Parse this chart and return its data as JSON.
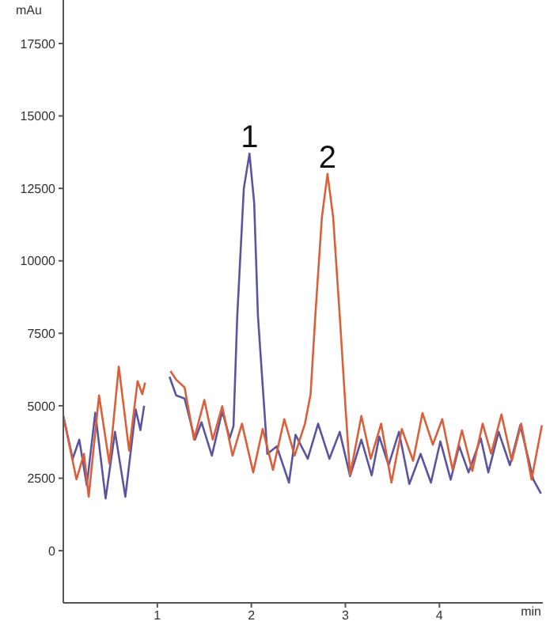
{
  "chart_data": {
    "type": "line",
    "xlabel": "min",
    "ylabel": "mAu",
    "xlim": [
      0,
      5.1
    ],
    "xticks": [
      1,
      2,
      3,
      4
    ],
    "ylim": [
      -1800,
      19000
    ],
    "yticks": [
      0,
      2500,
      5000,
      7500,
      10000,
      12500,
      15000,
      17500
    ],
    "grid": false,
    "marker": "none",
    "line_style": "solid",
    "annotations": [
      {
        "text": "1",
        "x": 1.98,
        "y": 13700
      },
      {
        "text": "2",
        "x": 2.81,
        "y": 13000
      }
    ],
    "series": [
      {
        "color": "#5a55a0",
        "x": [
          0,
          0.1,
          0.17,
          0.25,
          0.34,
          0.45,
          0.55,
          0.66,
          0.77,
          0.82,
          0.86,
          0.9,
          1.1,
          1.13,
          1.2,
          1.29,
          1.4,
          1.47,
          1.58,
          1.69,
          1.77,
          1.81,
          1.85,
          1.92,
          1.98,
          2.03,
          2.07,
          2.17,
          2.27,
          2.4,
          2.47,
          2.6,
          2.71,
          2.83,
          2.94,
          3.05,
          3.17,
          3.28,
          3.36,
          3.46,
          3.57,
          3.68,
          3.8,
          3.91,
          4.01,
          4.12,
          4.21,
          4.31,
          4.44,
          4.52,
          4.63,
          4.75,
          4.86,
          5.0,
          5.08
        ],
        "values": [
          4650,
          3170,
          3830,
          2250,
          4760,
          1800,
          4100,
          1860,
          4870,
          4160,
          5000,
          null,
          null,
          6000,
          5360,
          5250,
          3830,
          4430,
          3280,
          4810,
          3880,
          4300,
          8100,
          12500,
          13700,
          12000,
          8100,
          3340,
          3600,
          2350,
          4000,
          3170,
          4380,
          3170,
          4100,
          2570,
          3830,
          2600,
          3940,
          2950,
          4100,
          2300,
          3340,
          2350,
          3770,
          2450,
          3610,
          2700,
          3880,
          2700,
          4100,
          2950,
          4330,
          2450,
          1970
        ]
      },
      {
        "color": "#d9603a",
        "x": [
          0,
          0.14,
          0.22,
          0.27,
          0.38,
          0.49,
          0.59,
          0.7,
          0.79,
          0.84,
          0.87,
          0.89,
          1.12,
          1.14,
          1.2,
          1.29,
          1.39,
          1.5,
          1.59,
          1.69,
          1.8,
          1.9,
          2.02,
          2.12,
          2.23,
          2.35,
          2.46,
          2.57,
          2.63,
          2.68,
          2.75,
          2.81,
          2.87,
          2.94,
          3.0,
          3.05,
          3.17,
          3.27,
          3.38,
          3.49,
          3.6,
          3.72,
          3.82,
          3.93,
          4.03,
          4.14,
          4.24,
          4.35,
          4.46,
          4.55,
          4.66,
          4.77,
          4.87,
          4.98,
          5.09
        ],
        "values": [
          4650,
          2460,
          3340,
          1860,
          5360,
          3000,
          6350,
          3450,
          5850,
          5400,
          5800,
          null,
          null,
          6200,
          5900,
          5630,
          3830,
          5200,
          3830,
          4980,
          3280,
          4380,
          2700,
          4200,
          2790,
          4540,
          3280,
          4380,
          5400,
          8100,
          11500,
          13000,
          11500,
          8100,
          5000,
          2600,
          4650,
          3170,
          4380,
          2350,
          4200,
          3100,
          4750,
          3660,
          4540,
          2790,
          4150,
          2750,
          4380,
          3350,
          4700,
          3100,
          4380,
          2450,
          4330
        ]
      }
    ]
  }
}
